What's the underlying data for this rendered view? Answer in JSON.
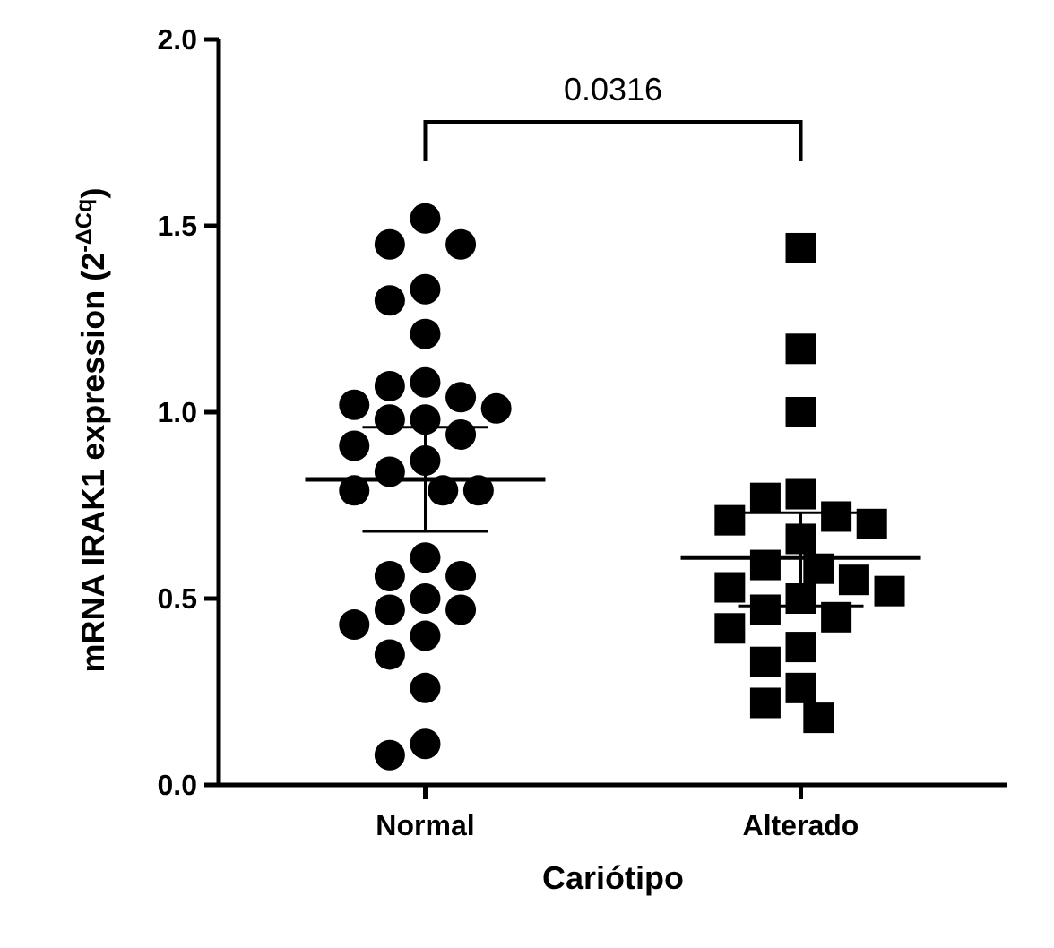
{
  "chart_data": {
    "type": "scatter",
    "categories": [
      "Normal",
      "Alterado"
    ],
    "xlabel": "Cariótipo",
    "ylabel": "mRNA IRAK1 expression (2$^{-ΔCq}$)",
    "ylim": [
      0,
      2
    ],
    "yticks": [
      {
        "value": 0,
        "label": "0.0"
      },
      {
        "value": 0.5,
        "label": "0.5"
      },
      {
        "value": 1,
        "label": "1.0"
      },
      {
        "value": 1.5,
        "label": "1.5"
      },
      {
        "value": 2,
        "label": "2.0"
      }
    ],
    "grid": false,
    "annotations": [
      "0.0316"
    ],
    "series": [
      {
        "type": "scatter",
        "marker": "circle",
        "color": "#000000",
        "x": [
          "Normal",
          "Normal",
          "Normal",
          "Normal",
          "Normal",
          "Normal",
          "Normal",
          "Normal",
          "Normal",
          "Normal",
          "Normal",
          "Normal",
          "Normal",
          "Normal",
          "Normal",
          "Normal",
          "Normal",
          "Normal",
          "Normal",
          "Normal",
          "Normal",
          "Normal",
          "Normal",
          "Normal",
          "Normal",
          "Normal",
          "Normal",
          "Normal",
          "Normal",
          "Normal",
          "Normal",
          "Normal"
        ],
        "values": [
          1.52,
          1.45,
          1.45,
          1.33,
          1.3,
          1.21,
          1.08,
          1.07,
          1.04,
          1.02,
          1.01,
          0.98,
          0.98,
          0.94,
          0.91,
          0.87,
          0.84,
          0.79,
          0.79,
          0.79,
          0.61,
          0.56,
          0.56,
          0.5,
          0.47,
          0.47,
          0.43,
          0.4,
          0.35,
          0.26,
          0.11,
          0.08
        ]
      },
      {
        "type": "scatter",
        "marker": "square",
        "color": "#000000",
        "x": [
          "Alterado",
          "Alterado",
          "Alterado",
          "Alterado",
          "Alterado",
          "Alterado",
          "Alterado",
          "Alterado",
          "Alterado",
          "Alterado",
          "Alterado",
          "Alterado",
          "Alterado",
          "Alterado",
          "Alterado",
          "Alterado",
          "Alterado",
          "Alterado",
          "Alterado",
          "Alterado",
          "Alterado",
          "Alterado",
          "Alterado"
        ],
        "values": [
          1.44,
          1.17,
          1.0,
          0.78,
          0.77,
          0.72,
          0.71,
          0.7,
          0.66,
          0.59,
          0.58,
          0.55,
          0.53,
          0.52,
          0.5,
          0.47,
          0.45,
          0.42,
          0.37,
          0.33,
          0.26,
          0.22,
          0.18
        ]
      },
      {
        "type": "box",
        "color": "#000000",
        "boxes": [
          {
            "low": 0.68,
            "q1": 0.82,
            "median": 0.82,
            "q3": 0.82,
            "high": 0.96
          },
          {
            "low": 0.48,
            "q1": 0.61,
            "median": 0.61,
            "q3": 0.61,
            "high": 0.73
          }
        ]
      }
    ]
  }
}
